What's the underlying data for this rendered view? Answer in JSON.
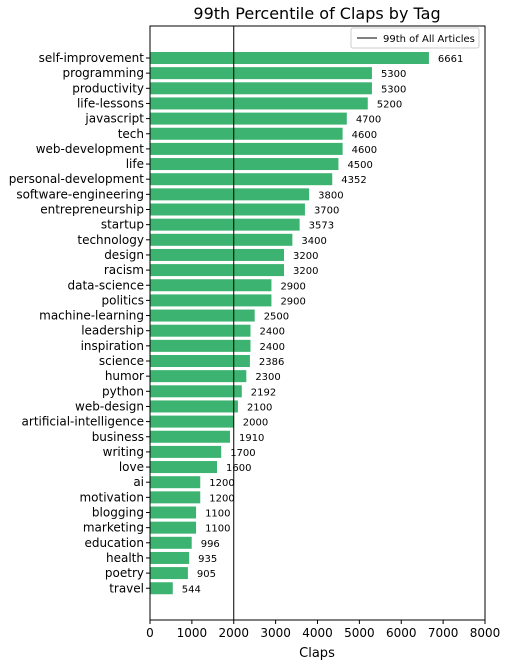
{
  "chart_data": {
    "type": "bar",
    "orientation": "horizontal",
    "title": "99th Percentile of Claps by Tag",
    "xlabel": "Claps",
    "ylabel": "",
    "xlim": [
      0,
      8000
    ],
    "xticks": [
      0,
      1000,
      2000,
      3000,
      4000,
      5000,
      6000,
      7000,
      8000
    ],
    "bar_color": "#3cb371",
    "categories": [
      "self-improvement",
      "programming",
      "productivity",
      "life-lessons",
      "javascript",
      "tech",
      "web-development",
      "life",
      "personal-development",
      "software-engineering",
      "entrepreneurship",
      "startup",
      "technology",
      "design",
      "racism",
      "data-science",
      "politics",
      "machine-learning",
      "leadership",
      "inspiration",
      "science",
      "humor",
      "python",
      "web-design",
      "artificial-intelligence",
      "business",
      "writing",
      "love",
      "ai",
      "motivation",
      "blogging",
      "marketing",
      "education",
      "health",
      "poetry",
      "travel"
    ],
    "values": [
      6661,
      5300,
      5300,
      5200,
      4700,
      4600,
      4600,
      4500,
      4352,
      3800,
      3700,
      3573,
      3400,
      3200,
      3200,
      2900,
      2900,
      2500,
      2400,
      2400,
      2386,
      2300,
      2192,
      2100,
      2000,
      1910,
      1700,
      1600,
      1200,
      1200,
      1100,
      1100,
      996,
      935,
      905,
      544
    ],
    "reference_line": {
      "value": 2000,
      "label": "99th of All Articles",
      "color": "#000000"
    },
    "legend": {
      "placement": "top-right",
      "label": "99th of All Articles"
    },
    "grid": false
  }
}
